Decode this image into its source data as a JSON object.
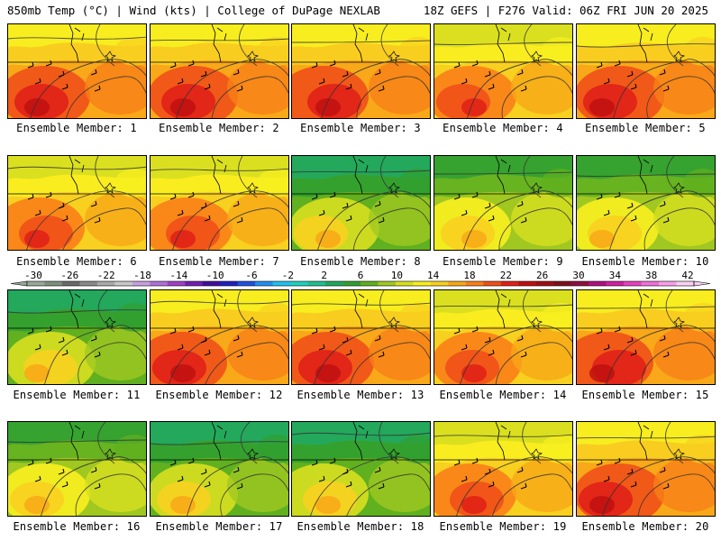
{
  "header": {
    "left": "850mb Temp (°C) | Wind (kts) | College of DuPage NEXLAB",
    "right": "18Z GEFS | F276 Valid: 06Z FRI JUN 20 2025"
  },
  "panels": [
    {
      "label": "Ensemble Member: 1",
      "member": 1,
      "palette": "hot"
    },
    {
      "label": "Ensemble Member: 2",
      "member": 2,
      "palette": "hot"
    },
    {
      "label": "Ensemble Member: 3",
      "member": 3,
      "palette": "hot"
    },
    {
      "label": "Ensemble Member: 4",
      "member": 4,
      "palette": "warm"
    },
    {
      "label": "Ensemble Member: 5",
      "member": 5,
      "palette": "hot"
    },
    {
      "label": "Ensemble Member: 6",
      "member": 6,
      "palette": "warm"
    },
    {
      "label": "Ensemble Member: 7",
      "member": 7,
      "palette": "warm"
    },
    {
      "label": "Ensemble Member: 8",
      "member": 8,
      "palette": "cool"
    },
    {
      "label": "Ensemble Member: 9",
      "member": 9,
      "palette": "mixed"
    },
    {
      "label": "Ensemble Member: 10",
      "member": 10,
      "palette": "mixed"
    },
    {
      "label": "Ensemble Member: 11",
      "member": 11,
      "palette": "cool"
    },
    {
      "label": "Ensemble Member: 12",
      "member": 12,
      "palette": "hot"
    },
    {
      "label": "Ensemble Member: 13",
      "member": 13,
      "palette": "hot"
    },
    {
      "label": "Ensemble Member: 14",
      "member": 14,
      "palette": "warm"
    },
    {
      "label": "Ensemble Member: 15",
      "member": 15,
      "palette": "hot"
    },
    {
      "label": "Ensemble Member: 16",
      "member": 16,
      "palette": "mixed"
    },
    {
      "label": "Ensemble Member: 17",
      "member": 17,
      "palette": "cool"
    },
    {
      "label": "Ensemble Member: 18",
      "member": 18,
      "palette": "cool"
    },
    {
      "label": "Ensemble Member: 19",
      "member": 19,
      "palette": "warm"
    },
    {
      "label": "Ensemble Member: 20",
      "member": 20,
      "palette": "hot"
    }
  ],
  "colorbar": {
    "labels": [
      "-30",
      "-26",
      "-22",
      "-18",
      "-14",
      "-10",
      "-6",
      "-2",
      "2",
      "6",
      "10",
      "14",
      "18",
      "22",
      "26",
      "30",
      "34",
      "38",
      "42"
    ],
    "colors": [
      "#9aa89a",
      "#7f8f7f",
      "#6a6a6a",
      "#8a8a8a",
      "#aaaaaa",
      "#c8c8c8",
      "#c8a0e0",
      "#b070d8",
      "#a040c8",
      "#7020b0",
      "#4010a0",
      "#2020c0",
      "#2050e0",
      "#2090f0",
      "#20c0f0",
      "#20d0c0",
      "#20c090",
      "#20a860",
      "#30a030",
      "#60b020",
      "#a0c820",
      "#d8e020",
      "#f8f020",
      "#f8d020",
      "#f8a818",
      "#f88018",
      "#f05018",
      "#e02018",
      "#c01010",
      "#a01010",
      "#801018",
      "#901040",
      "#b01080",
      "#d020a0",
      "#e840c0",
      "#f070d8",
      "#f8a0e8",
      "#fcd0f4"
    ]
  },
  "palettes": {
    "hot": [
      "#f8f020",
      "#f8d020",
      "#f8a818",
      "#f88018",
      "#f05018",
      "#e02018",
      "#c01010"
    ],
    "warm": [
      "#d8e020",
      "#f8f020",
      "#f8d020",
      "#f8a818",
      "#f88018",
      "#f05018",
      "#e02018"
    ],
    "mixed": [
      "#30a030",
      "#60b020",
      "#a0c820",
      "#d8e020",
      "#f8f020",
      "#f8d020",
      "#f8a818"
    ],
    "cool": [
      "#20a860",
      "#30a030",
      "#60b020",
      "#a0c820",
      "#d8e020",
      "#f8d020",
      "#f8a818"
    ]
  }
}
